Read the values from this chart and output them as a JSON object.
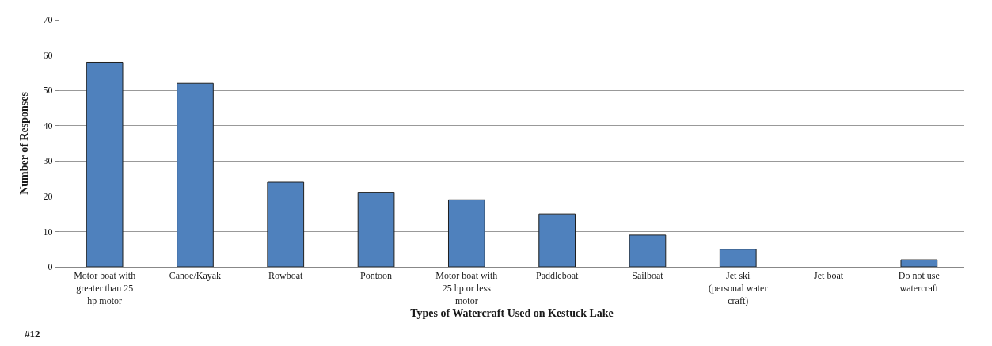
{
  "chart_data": {
    "type": "bar",
    "xlabel": "Types of Watercraft Used on Kestuck Lake",
    "ylabel": "Number of Responses",
    "categories": [
      "Motor boat with greater than 25 hp motor",
      "Canoe/Kayak",
      "Rowboat",
      "Pontoon",
      "Motor boat with 25 hp or less motor",
      "Paddleboat",
      "Sailboat",
      "Jet ski (personal water craft)",
      "Jet boat",
      "Do not use watercraft"
    ],
    "values": [
      58,
      52,
      24,
      21,
      19,
      15,
      9,
      5,
      0,
      2
    ],
    "color": "#4f81bd",
    "ylim": [
      0,
      70
    ],
    "yticks": [
      0,
      10,
      20,
      30,
      40,
      50,
      60,
      70
    ],
    "grid": "y",
    "annotations": [
      "#12"
    ]
  }
}
